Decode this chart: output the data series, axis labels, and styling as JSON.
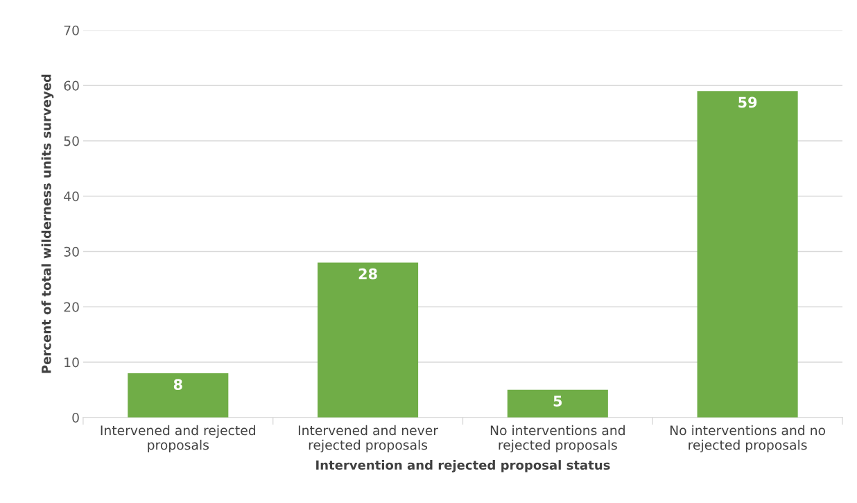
{
  "chart_data": {
    "type": "bar",
    "categories": [
      "Intervened and rejected\nproposals",
      "Intervened and never\nrejected proposals",
      "No interventions and\nrejected proposals",
      "No interventions and no\nrejected proposals"
    ],
    "values": [
      8,
      28,
      5,
      59
    ],
    "color": "#70ad47",
    "xlabel": "Intervention and rejected proposal status",
    "ylabel": "Percent of total wilderness units surveyed",
    "ylim": [
      0,
      70
    ],
    "yticks": [
      0,
      10,
      20,
      30,
      40,
      50,
      60,
      70
    ],
    "grid": "y",
    "data_labels": true
  }
}
